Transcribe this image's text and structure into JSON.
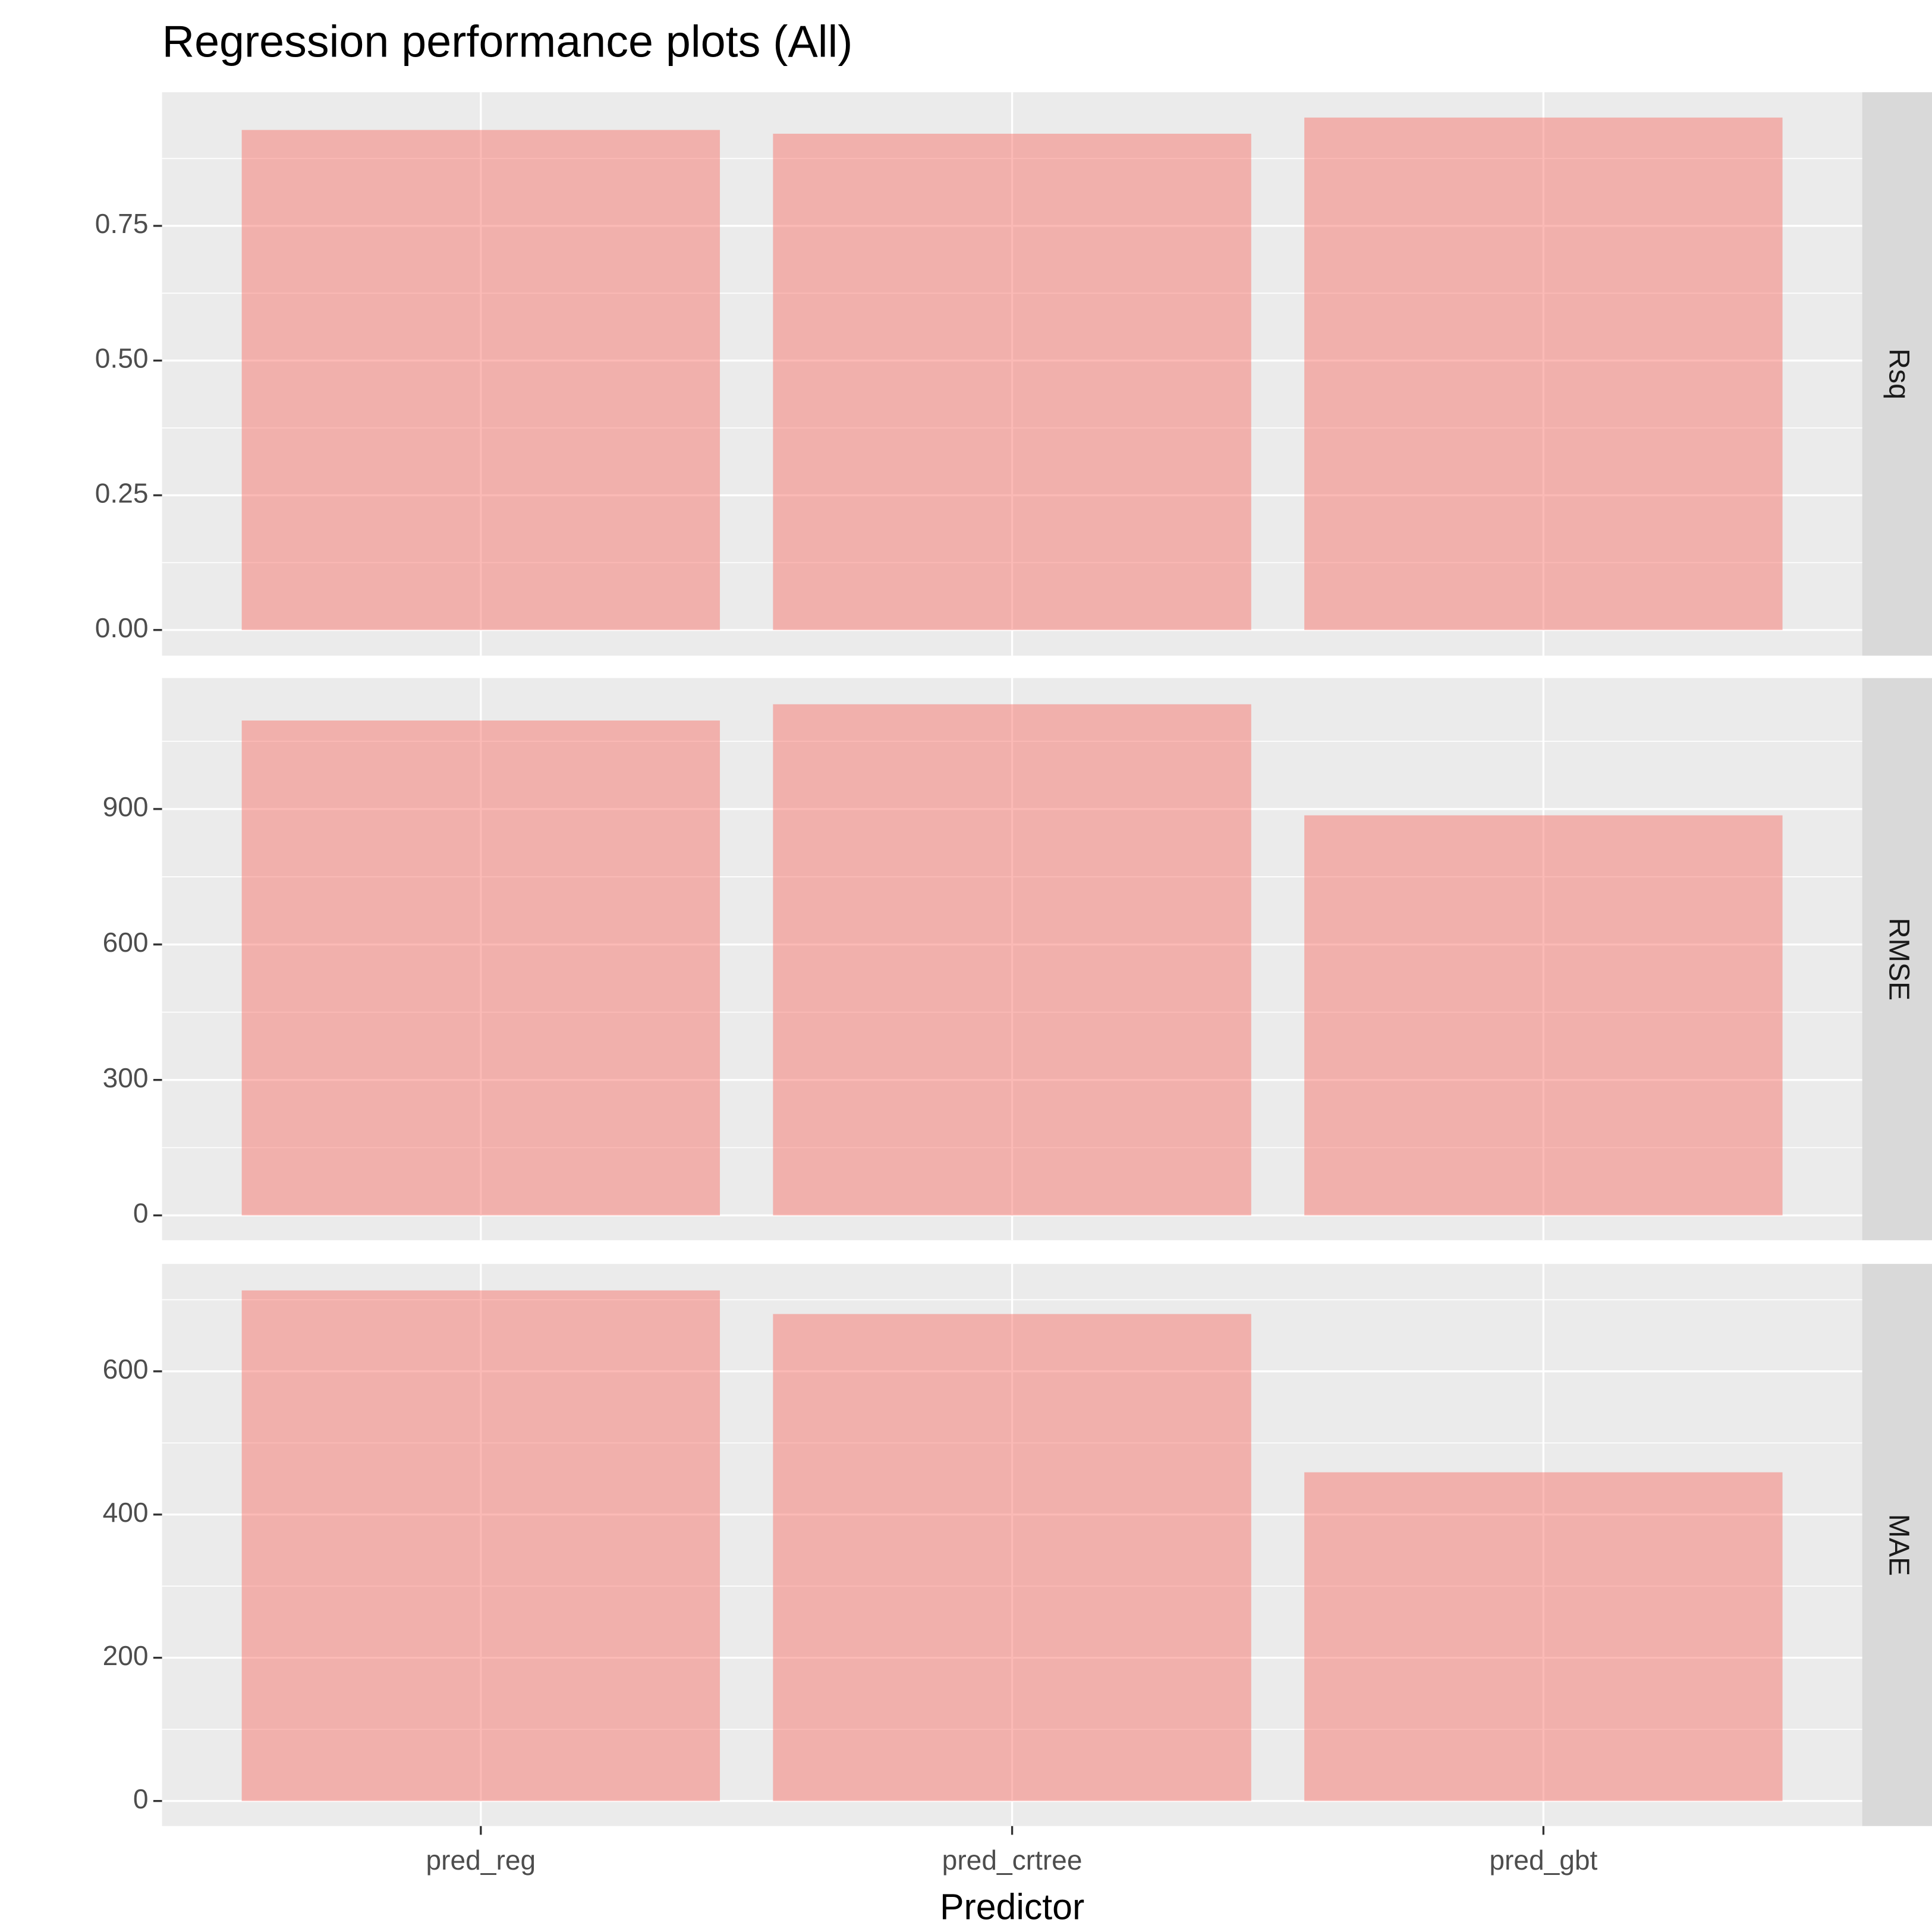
{
  "chart_data": {
    "type": "bar",
    "title": "Regression performance plots (All)",
    "x_label": "Predictor",
    "categories": [
      "pred_reg",
      "pred_crtree",
      "pred_gbt"
    ],
    "color": "#F8766D",
    "opacity": 0.5,
    "grid": true,
    "panels": [
      {
        "strip": "Rsq",
        "values": [
          0.928,
          0.921,
          0.951
        ],
        "ylim": [
          -0.0476,
          0.998
        ],
        "yticks": [
          {
            "value": 0,
            "label": "0.00"
          },
          {
            "value": 0.25,
            "label": "0.25"
          },
          {
            "value": 0.5,
            "label": "0.50"
          },
          {
            "value": 0.75,
            "label": "0.75"
          }
        ]
      },
      {
        "strip": "RMSE",
        "values": [
          1096,
          1132,
          886
        ],
        "ylim": [
          -55,
          1190
        ],
        "yticks": [
          0,
          300,
          600,
          900
        ]
      },
      {
        "strip": "MAE",
        "values": [
          713,
          680,
          459
        ],
        "ylim": [
          -35,
          750
        ],
        "yticks": [
          0,
          200,
          400,
          600
        ]
      }
    ]
  }
}
